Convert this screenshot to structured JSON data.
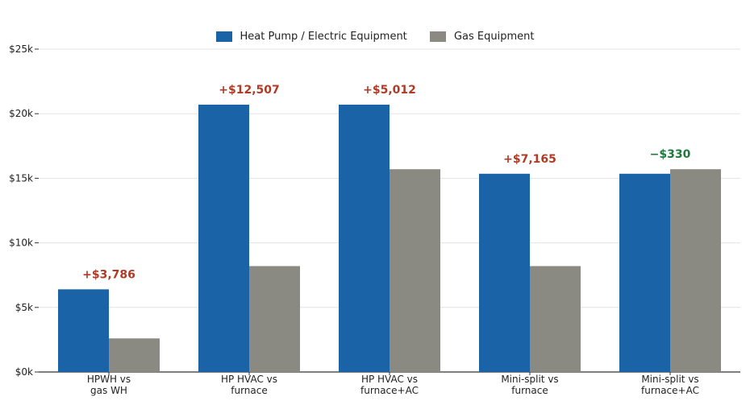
{
  "chart_data": {
    "type": "bar",
    "categories": [
      [
        "HPWH vs",
        "gas WH"
      ],
      [
        "HP HVAC vs",
        "furnace"
      ],
      [
        "HP HVAC vs",
        "furnace+AC"
      ],
      [
        "Mini-split vs",
        "furnace"
      ],
      [
        "Mini-split vs",
        "furnace+AC"
      ]
    ],
    "series": [
      {
        "name": "Heat Pump / Electric Equipment",
        "color": "#1a63a6",
        "values": [
          6400,
          20700,
          20700,
          15350,
          15350
        ]
      },
      {
        "name": "Gas Equipment",
        "color": "#8a8a82",
        "values": [
          2600,
          8200,
          15700,
          8200,
          15700
        ]
      }
    ],
    "annotations": [
      {
        "text": "+$3,786",
        "color": "#b23a24"
      },
      {
        "text": "+$12,507",
        "color": "#b23a24"
      },
      {
        "text": "+$5,012",
        "color": "#b23a24"
      },
      {
        "text": "+$7,165",
        "color": "#b23a24"
      },
      {
        "text": "−$330",
        "color": "#1e7a3c"
      }
    ],
    "ylim": [
      0,
      25000
    ],
    "yticks": [
      0,
      5000,
      10000,
      15000,
      20000,
      25000
    ],
    "ytick_labels": [
      "$0k",
      "$5k",
      "$10k",
      "$15k",
      "$20k",
      "$25k"
    ],
    "legend_position": "top-center",
    "grid": "horizontal"
  }
}
